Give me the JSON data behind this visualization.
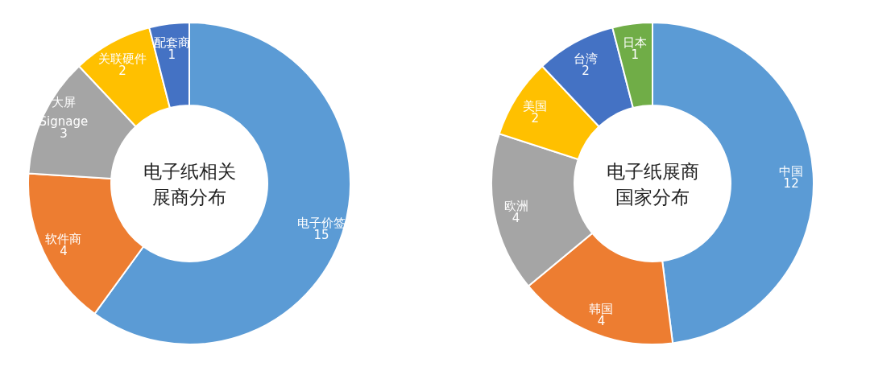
{
  "chart_data": [
    {
      "type": "donut",
      "title": "电子纸相关展商分布",
      "categories": [
        "电子价签",
        "软件商",
        "大屏 Signage",
        "关联硬件",
        "配套商"
      ],
      "values": [
        15,
        4,
        3,
        2,
        1
      ],
      "colors": [
        "#5b9bd5",
        "#ed7d31",
        "#a5a5a5",
        "#ffc000",
        "#4472c4"
      ],
      "data_labels": true
    },
    {
      "type": "donut",
      "title": "电子纸展商国家分布",
      "categories": [
        "中国",
        "韩国",
        "欧洲",
        "美国",
        "台湾",
        "日本"
      ],
      "values": [
        12,
        4,
        4,
        2,
        2,
        1
      ],
      "colors": [
        "#5b9bd5",
        "#ed7d31",
        "#a5a5a5",
        "#ffc000",
        "#4472c4",
        "#70ad47"
      ],
      "data_labels": true
    }
  ]
}
